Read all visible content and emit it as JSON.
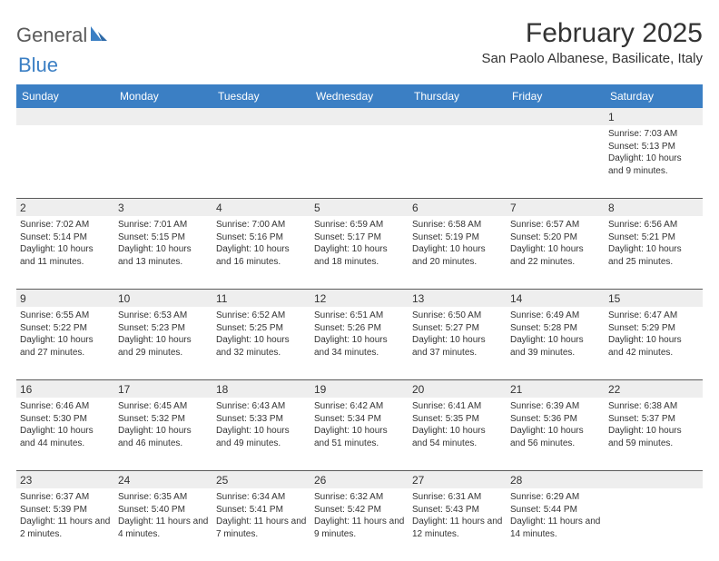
{
  "brand": {
    "part1": "General",
    "part2": "Blue",
    "text_color1": "#5a5a5a",
    "text_color2": "#3b7fc4",
    "icon_color": "#3b7fc4"
  },
  "title": "February 2025",
  "location": "San Paolo Albanese, Basilicate, Italy",
  "colors": {
    "header_bg": "#3b7fc4",
    "header_text": "#ffffff",
    "daynum_bg": "#eeeeee",
    "border": "#5a5a5a",
    "text": "#333333",
    "background": "#ffffff"
  },
  "fonts": {
    "title_size": 30,
    "location_size": 15,
    "header_size": 12,
    "daynum_size": 12,
    "body_size": 10
  },
  "day_names": [
    "Sunday",
    "Monday",
    "Tuesday",
    "Wednesday",
    "Thursday",
    "Friday",
    "Saturday"
  ],
  "weeks": [
    {
      "nums": [
        "",
        "",
        "",
        "",
        "",
        "",
        "1"
      ],
      "cells": [
        [],
        [],
        [],
        [],
        [],
        [],
        [
          "Sunrise: 7:03 AM",
          "Sunset: 5:13 PM",
          "Daylight: 10 hours and 9 minutes."
        ]
      ]
    },
    {
      "nums": [
        "2",
        "3",
        "4",
        "5",
        "6",
        "7",
        "8"
      ],
      "cells": [
        [
          "Sunrise: 7:02 AM",
          "Sunset: 5:14 PM",
          "Daylight: 10 hours and 11 minutes."
        ],
        [
          "Sunrise: 7:01 AM",
          "Sunset: 5:15 PM",
          "Daylight: 10 hours and 13 minutes."
        ],
        [
          "Sunrise: 7:00 AM",
          "Sunset: 5:16 PM",
          "Daylight: 10 hours and 16 minutes."
        ],
        [
          "Sunrise: 6:59 AM",
          "Sunset: 5:17 PM",
          "Daylight: 10 hours and 18 minutes."
        ],
        [
          "Sunrise: 6:58 AM",
          "Sunset: 5:19 PM",
          "Daylight: 10 hours and 20 minutes."
        ],
        [
          "Sunrise: 6:57 AM",
          "Sunset: 5:20 PM",
          "Daylight: 10 hours and 22 minutes."
        ],
        [
          "Sunrise: 6:56 AM",
          "Sunset: 5:21 PM",
          "Daylight: 10 hours and 25 minutes."
        ]
      ]
    },
    {
      "nums": [
        "9",
        "10",
        "11",
        "12",
        "13",
        "14",
        "15"
      ],
      "cells": [
        [
          "Sunrise: 6:55 AM",
          "Sunset: 5:22 PM",
          "Daylight: 10 hours and 27 minutes."
        ],
        [
          "Sunrise: 6:53 AM",
          "Sunset: 5:23 PM",
          "Daylight: 10 hours and 29 minutes."
        ],
        [
          "Sunrise: 6:52 AM",
          "Sunset: 5:25 PM",
          "Daylight: 10 hours and 32 minutes."
        ],
        [
          "Sunrise: 6:51 AM",
          "Sunset: 5:26 PM",
          "Daylight: 10 hours and 34 minutes."
        ],
        [
          "Sunrise: 6:50 AM",
          "Sunset: 5:27 PM",
          "Daylight: 10 hours and 37 minutes."
        ],
        [
          "Sunrise: 6:49 AM",
          "Sunset: 5:28 PM",
          "Daylight: 10 hours and 39 minutes."
        ],
        [
          "Sunrise: 6:47 AM",
          "Sunset: 5:29 PM",
          "Daylight: 10 hours and 42 minutes."
        ]
      ]
    },
    {
      "nums": [
        "16",
        "17",
        "18",
        "19",
        "20",
        "21",
        "22"
      ],
      "cells": [
        [
          "Sunrise: 6:46 AM",
          "Sunset: 5:30 PM",
          "Daylight: 10 hours and 44 minutes."
        ],
        [
          "Sunrise: 6:45 AM",
          "Sunset: 5:32 PM",
          "Daylight: 10 hours and 46 minutes."
        ],
        [
          "Sunrise: 6:43 AM",
          "Sunset: 5:33 PM",
          "Daylight: 10 hours and 49 minutes."
        ],
        [
          "Sunrise: 6:42 AM",
          "Sunset: 5:34 PM",
          "Daylight: 10 hours and 51 minutes."
        ],
        [
          "Sunrise: 6:41 AM",
          "Sunset: 5:35 PM",
          "Daylight: 10 hours and 54 minutes."
        ],
        [
          "Sunrise: 6:39 AM",
          "Sunset: 5:36 PM",
          "Daylight: 10 hours and 56 minutes."
        ],
        [
          "Sunrise: 6:38 AM",
          "Sunset: 5:37 PM",
          "Daylight: 10 hours and 59 minutes."
        ]
      ]
    },
    {
      "nums": [
        "23",
        "24",
        "25",
        "26",
        "27",
        "28",
        ""
      ],
      "cells": [
        [
          "Sunrise: 6:37 AM",
          "Sunset: 5:39 PM",
          "Daylight: 11 hours and 2 minutes."
        ],
        [
          "Sunrise: 6:35 AM",
          "Sunset: 5:40 PM",
          "Daylight: 11 hours and 4 minutes."
        ],
        [
          "Sunrise: 6:34 AM",
          "Sunset: 5:41 PM",
          "Daylight: 11 hours and 7 minutes."
        ],
        [
          "Sunrise: 6:32 AM",
          "Sunset: 5:42 PM",
          "Daylight: 11 hours and 9 minutes."
        ],
        [
          "Sunrise: 6:31 AM",
          "Sunset: 5:43 PM",
          "Daylight: 11 hours and 12 minutes."
        ],
        [
          "Sunrise: 6:29 AM",
          "Sunset: 5:44 PM",
          "Daylight: 11 hours and 14 minutes."
        ],
        []
      ]
    }
  ]
}
